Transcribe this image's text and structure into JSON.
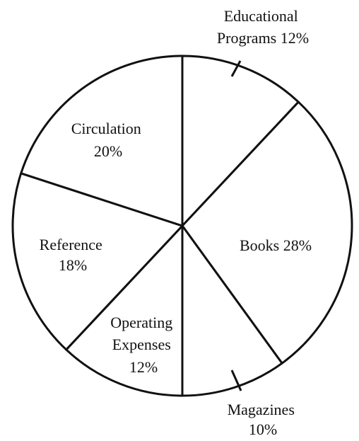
{
  "chart_data": {
    "type": "pie",
    "start_at": "top (12 o'clock)",
    "direction": "clockwise",
    "unit": "%",
    "slices": [
      {
        "line1": "Educational",
        "line2": "Programs 12%",
        "line3": "",
        "value": 12
      },
      {
        "line1": "Books 28%",
        "line2": "",
        "line3": "",
        "value": 28
      },
      {
        "line1": "Magazines",
        "line2": "10%",
        "line3": "",
        "value": 10
      },
      {
        "line1": "Operating",
        "line2": "Expenses",
        "line3": "12%",
        "value": 12
      },
      {
        "line1": "Reference",
        "line2": "18%",
        "line3": "",
        "value": 18
      },
      {
        "line1": "Circulation",
        "line2": "20%",
        "line3": "",
        "value": 20
      }
    ],
    "colors": {
      "fill": "#ffffff",
      "stroke": "#111111",
      "text": "#111111"
    }
  }
}
